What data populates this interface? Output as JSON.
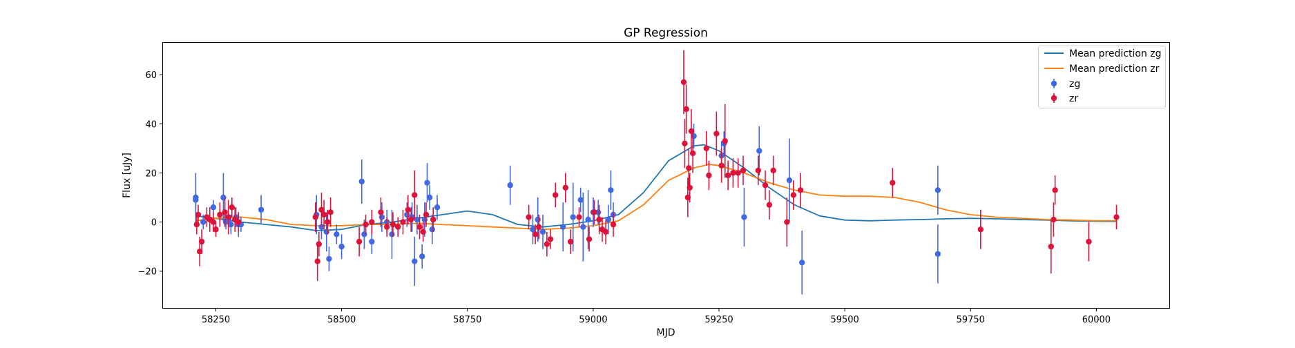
{
  "chart_data": {
    "type": "scatter",
    "title": "GP Regression",
    "xlabel": "MJD",
    "ylabel": "Flux [uJy]",
    "xlim": [
      58145,
      60145
    ],
    "ylim": [
      -35,
      73
    ],
    "xticks": [
      58250,
      58500,
      58750,
      59000,
      59250,
      59500,
      59750,
      60000
    ],
    "yticks": [
      -20,
      0,
      20,
      40,
      60
    ],
    "grid": false,
    "legend_position": "top-right",
    "legend": [
      "Mean prediction zg",
      "Mean prediction zr",
      "zg",
      "zr"
    ],
    "lines": [
      {
        "name": "Mean prediction zg",
        "color": "#1f77b4",
        "x": [
          58210,
          58250,
          58300,
          58350,
          58400,
          58450,
          58500,
          58550,
          58600,
          58650,
          58700,
          58750,
          58800,
          58850,
          58900,
          58950,
          59000,
          59050,
          59100,
          59150,
          59200,
          59220,
          59250,
          59300,
          59350,
          59400,
          59450,
          59500,
          59550,
          59600,
          59650,
          59700,
          59750,
          59800,
          59850,
          59900,
          59950,
          60000,
          60040
        ],
        "y": [
          2.5,
          1.5,
          0,
          -1,
          -2,
          -3.5,
          -3,
          -1,
          0,
          1.5,
          3,
          4.5,
          3,
          -1,
          -2,
          -1,
          0.5,
          3,
          12,
          25,
          31,
          31.5,
          29,
          22,
          14,
          7,
          2.5,
          0.8,
          0.5,
          0.8,
          1,
          1.3,
          1.5,
          1.3,
          1,
          0.8,
          0.5,
          0.3,
          0.2
        ]
      },
      {
        "name": "Mean prediction zr",
        "color": "#ff7f0e",
        "x": [
          58210,
          58250,
          58300,
          58350,
          58400,
          58450,
          58500,
          58550,
          58600,
          58650,
          58700,
          58750,
          58800,
          58850,
          58900,
          58950,
          59000,
          59050,
          59100,
          59150,
          59200,
          59230,
          59250,
          59300,
          59350,
          59400,
          59450,
          59500,
          59550,
          59600,
          59650,
          59700,
          59750,
          59800,
          59850,
          59900,
          59950,
          60000,
          60040
        ],
        "y": [
          0.5,
          1.5,
          2,
          1,
          -1,
          -1.5,
          -1.5,
          -1,
          -1,
          -0.5,
          -1,
          -1.5,
          -2,
          -2.5,
          -3,
          -2.5,
          -1.5,
          0.5,
          7,
          17,
          22,
          23.5,
          23,
          20,
          16,
          13,
          11,
          10.5,
          10.5,
          10,
          8,
          5,
          3,
          2,
          1.5,
          1,
          0.8,
          0.5,
          0.5
        ]
      }
    ],
    "series": [
      {
        "name": "zg",
        "color": "#4169e1",
        "x": [
          58210,
          58210,
          58225,
          58245,
          58265,
          58270,
          58275,
          58280,
          58290,
          58295,
          58300,
          58340,
          58450,
          58460,
          58470,
          58475,
          58490,
          58500,
          58540,
          58545,
          58560,
          58580,
          58590,
          58600,
          58630,
          58640,
          58645,
          58650,
          58660,
          58665,
          58670,
          58675,
          58680,
          58690,
          58835,
          58880,
          58890,
          58900,
          58940,
          58960,
          58975,
          58980,
          58990,
          59000,
          59010,
          59030,
          59035,
          59040,
          59200,
          59255,
          59260,
          59300,
          59330,
          59390,
          59415,
          59685,
          59685
        ],
        "y": [
          10,
          9,
          0,
          6,
          10,
          0,
          1,
          -1,
          2,
          -1,
          -1,
          5,
          3,
          -2,
          -4,
          -15,
          -5,
          -10,
          16.5,
          -5,
          -8,
          2,
          0,
          -5,
          3,
          2,
          -16,
          1,
          -14,
          1,
          16,
          10,
          -3,
          6,
          15,
          -3,
          1,
          -4,
          -2,
          2,
          9,
          -2,
          1,
          4,
          4,
          1,
          13,
          3,
          35,
          27,
          32,
          2,
          29,
          17,
          -16.5,
          -13,
          13
        ],
        "err": [
          10,
          3,
          3,
          3,
          10,
          3,
          3,
          4,
          4,
          5,
          3,
          6,
          8,
          5,
          8,
          5,
          4,
          5,
          9,
          6,
          5,
          6,
          5,
          10,
          5,
          6,
          10,
          6,
          5,
          7,
          8,
          5,
          6,
          5,
          8,
          6,
          9,
          7,
          10,
          14,
          5,
          14,
          12,
          6,
          5,
          6,
          8,
          5,
          5,
          6,
          5,
          12,
          10,
          17,
          13,
          12,
          10
        ]
      },
      {
        "name": "zr",
        "color": "#dc143c",
        "x": [
          58212,
          58215,
          58218,
          58222,
          58232,
          58238,
          58245,
          58250,
          58258,
          58268,
          58275,
          58282,
          58288,
          58295,
          58448,
          58452,
          58455,
          58460,
          58465,
          58472,
          58478,
          58535,
          58548,
          58560,
          58578,
          58590,
          58602,
          58612,
          58622,
          58632,
          58638,
          58645,
          58655,
          58662,
          58668,
          58682,
          58872,
          58885,
          58892,
          58908,
          58915,
          58925,
          58945,
          58955,
          58972,
          58992,
          59002,
          59012,
          59018,
          59025,
          59040,
          59180,
          59182,
          59185,
          59188,
          59190,
          59192,
          59195,
          59198,
          59225,
          59230,
          59245,
          59255,
          59262,
          59268,
          59278,
          59288,
          59298,
          59328,
          59342,
          59350,
          59358,
          59385,
          59398,
          59412,
          59595,
          59770,
          59910,
          59915,
          59918,
          59985,
          60040
        ],
        "y": [
          -1,
          3,
          -12,
          -8,
          2,
          1,
          0,
          -3,
          3,
          4,
          2,
          6,
          1,
          0,
          2,
          -16,
          -9,
          5,
          3,
          0,
          4,
          -8,
          -1,
          0,
          4,
          -2,
          -1,
          -2,
          0,
          5,
          1,
          11,
          -2,
          -4,
          3,
          1,
          2,
          -5,
          -2,
          -9,
          -7,
          11,
          14,
          -8,
          2,
          -7,
          4,
          1,
          -3,
          -4,
          -1,
          57,
          32,
          46,
          10,
          22,
          14,
          37,
          28,
          30,
          19,
          36,
          23,
          33,
          19,
          20,
          20,
          21,
          21,
          15,
          7,
          21,
          0,
          11,
          13,
          16,
          -3,
          -10,
          1,
          13,
          -8,
          2
        ],
        "err": [
          4,
          4,
          6,
          5,
          4,
          5,
          4,
          3,
          5,
          6,
          7,
          4,
          5,
          4,
          6,
          8,
          5,
          7,
          6,
          5,
          6,
          6,
          4,
          5,
          6,
          4,
          5,
          4,
          5,
          6,
          5,
          10,
          5,
          4,
          5,
          5,
          5,
          4,
          5,
          5,
          4,
          5,
          6,
          5,
          4,
          5,
          5,
          6,
          5,
          5,
          5,
          13,
          10,
          10,
          8,
          8,
          6,
          9,
          8,
          7,
          6,
          9,
          7,
          15,
          6,
          6,
          6,
          6,
          6,
          6,
          6,
          6,
          10,
          6,
          7,
          6,
          8,
          11,
          7,
          6,
          8,
          5
        ]
      }
    ]
  }
}
